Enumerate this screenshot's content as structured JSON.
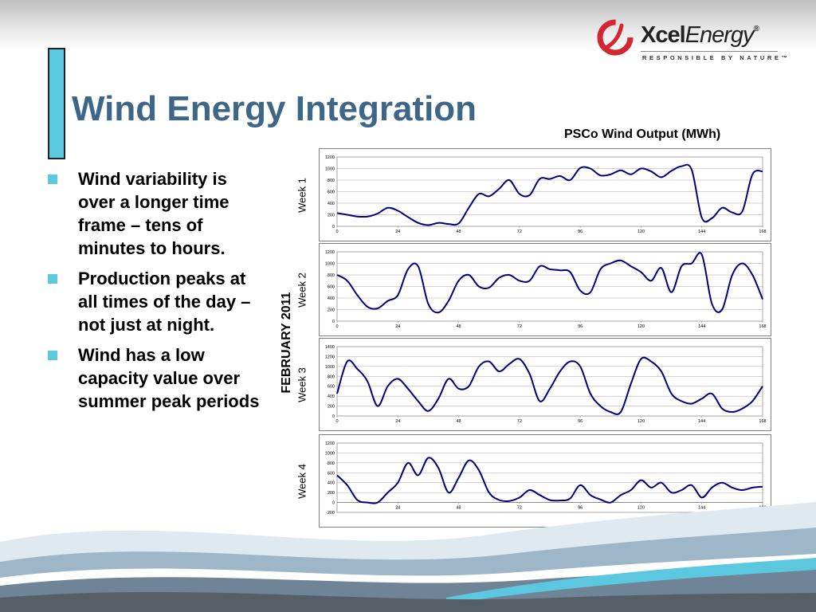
{
  "slide": {
    "title": "Wind Energy Integration",
    "bullets": [
      "Wind variability is over a longer time frame – tens of minutes to hours.",
      "Production peaks at all times of the day – not just at night.",
      "Wind has a low capacity value over summer peak periods"
    ],
    "colors": {
      "title": "#3d6688",
      "accent": "#5bc8e0",
      "line": "#00007f",
      "logo_red": "#d22630"
    }
  },
  "logo": {
    "name_bold": "Xcel",
    "name_light": "Energy",
    "registered": "®",
    "tagline": "RESPONSIBLE BY NATURE™",
    "icon": "swirl-logo-icon"
  },
  "chart_title": "PSCo Wind Output (MWh)",
  "month_label": "FEBRUARY 2011",
  "chart_data": [
    {
      "type": "line",
      "label": "Week 1",
      "ylim": [
        0,
        1200
      ],
      "yticks": [
        0,
        200,
        400,
        600,
        800,
        1000,
        1200
      ],
      "xlim": [
        0,
        168
      ],
      "xticks": [
        0,
        24,
        48,
        72,
        96,
        120,
        144,
        168
      ],
      "x": [
        0,
        4,
        8,
        12,
        16,
        20,
        24,
        28,
        32,
        36,
        40,
        44,
        48,
        52,
        56,
        60,
        64,
        68,
        72,
        76,
        80,
        84,
        88,
        92,
        96,
        100,
        104,
        108,
        112,
        116,
        120,
        124,
        128,
        132,
        136,
        140,
        144,
        148,
        152,
        156,
        160,
        164,
        168
      ],
      "values": [
        230,
        200,
        170,
        170,
        220,
        320,
        270,
        160,
        60,
        20,
        60,
        40,
        50,
        320,
        560,
        520,
        650,
        800,
        560,
        540,
        820,
        820,
        870,
        800,
        1010,
        1000,
        880,
        900,
        970,
        900,
        1000,
        950,
        850,
        960,
        1040,
        980,
        150,
        140,
        320,
        240,
        260,
        900,
        950
      ]
    },
    {
      "type": "line",
      "label": "Week 2",
      "ylim": [
        0,
        1200
      ],
      "yticks": [
        0,
        200,
        400,
        600,
        800,
        1000,
        1200
      ],
      "xlim": [
        0,
        168
      ],
      "xticks": [
        0,
        24,
        48,
        72,
        96,
        120,
        144,
        168
      ],
      "x": [
        0,
        4,
        8,
        12,
        16,
        20,
        24,
        28,
        32,
        36,
        40,
        44,
        48,
        52,
        56,
        60,
        64,
        68,
        72,
        76,
        80,
        84,
        88,
        92,
        96,
        100,
        104,
        108,
        112,
        116,
        120,
        124,
        128,
        132,
        136,
        140,
        144,
        148,
        152,
        156,
        160,
        164,
        168
      ],
      "values": [
        800,
        700,
        450,
        250,
        220,
        350,
        450,
        900,
        950,
        300,
        150,
        350,
        700,
        800,
        600,
        580,
        750,
        800,
        700,
        700,
        950,
        900,
        880,
        850,
        530,
        500,
        900,
        1000,
        1050,
        950,
        850,
        700,
        920,
        500,
        950,
        1000,
        1150,
        300,
        200,
        800,
        1000,
        800,
        380
      ]
    },
    {
      "type": "line",
      "label": "Week 3",
      "ylim": [
        0,
        1400
      ],
      "yticks": [
        0,
        200,
        400,
        600,
        800,
        1000,
        1200,
        1400
      ],
      "xlim": [
        0,
        168
      ],
      "xticks": [
        0,
        24,
        48,
        72,
        96,
        120,
        144,
        168
      ],
      "x": [
        0,
        4,
        8,
        12,
        16,
        20,
        24,
        28,
        32,
        36,
        40,
        44,
        48,
        52,
        56,
        60,
        64,
        68,
        72,
        76,
        80,
        84,
        88,
        92,
        96,
        100,
        104,
        108,
        112,
        116,
        120,
        124,
        128,
        132,
        136,
        140,
        144,
        148,
        152,
        156,
        160,
        164,
        168
      ],
      "values": [
        450,
        1100,
        950,
        700,
        200,
        600,
        750,
        550,
        300,
        100,
        350,
        750,
        550,
        600,
        1000,
        1100,
        900,
        1050,
        1150,
        850,
        300,
        550,
        900,
        1100,
        1000,
        450,
        200,
        80,
        80,
        650,
        1150,
        1100,
        900,
        450,
        300,
        250,
        350,
        450,
        150,
        80,
        150,
        300,
        600
      ]
    },
    {
      "type": "line",
      "label": "Week 4",
      "ylim": [
        -200,
        1200
      ],
      "yticks": [
        -200,
        0,
        200,
        400,
        600,
        800,
        1000,
        1200
      ],
      "xlim": [
        0,
        168
      ],
      "xticks": [
        24,
        48,
        72,
        96,
        120,
        144,
        168
      ],
      "x": [
        0,
        4,
        8,
        12,
        16,
        20,
        24,
        28,
        32,
        36,
        40,
        44,
        48,
        52,
        56,
        60,
        64,
        68,
        72,
        76,
        80,
        84,
        88,
        92,
        96,
        100,
        104,
        108,
        112,
        116,
        120,
        124,
        128,
        132,
        136,
        140,
        144,
        148,
        152,
        156,
        160,
        164,
        168
      ],
      "values": [
        550,
        350,
        50,
        0,
        0,
        200,
        400,
        800,
        550,
        900,
        700,
        200,
        500,
        850,
        650,
        200,
        50,
        30,
        100,
        250,
        150,
        50,
        40,
        80,
        350,
        150,
        60,
        0,
        150,
        250,
        450,
        300,
        400,
        200,
        250,
        350,
        100,
        300,
        400,
        300,
        250,
        300,
        320
      ]
    }
  ]
}
